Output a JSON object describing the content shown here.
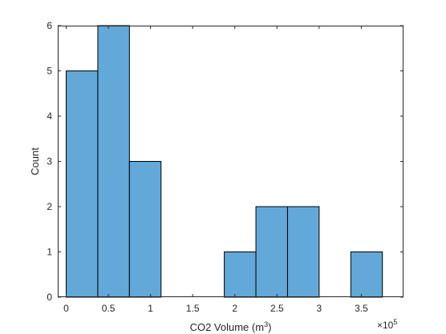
{
  "chart_data": {
    "type": "bar",
    "subtype": "histogram",
    "xlabel": "CO2 Volume (m",
    "xlabel_superscript": "3",
    "xlabel_suffix": ")",
    "ylabel": "Count",
    "x_exponent_label": "×10",
    "x_exponent_power": "5",
    "xlim": [
      -0.1,
      4.0
    ],
    "ylim": [
      0,
      6
    ],
    "bin_edges": [
      0,
      0.375,
      0.75,
      1.125,
      1.5,
      1.875,
      2.25,
      2.625,
      3.0,
      3.375,
      3.75
    ],
    "values": [
      5,
      6,
      3,
      0,
      0,
      1,
      2,
      2,
      0,
      1
    ],
    "x_ticks": [
      0,
      0.5,
      1,
      1.5,
      2,
      2.5,
      3,
      3.5
    ],
    "x_tick_labels": [
      "0",
      "0.5",
      "1",
      "1.5",
      "2",
      "2.5",
      "3",
      "3.5"
    ],
    "y_ticks": [
      0,
      1,
      2,
      3,
      4,
      5,
      6
    ],
    "y_tick_labels": [
      "0",
      "1",
      "2",
      "3",
      "4",
      "5",
      "6"
    ],
    "bar_color": "#62a8d8",
    "edge_color": "#000000",
    "grid": false,
    "box": true
  }
}
